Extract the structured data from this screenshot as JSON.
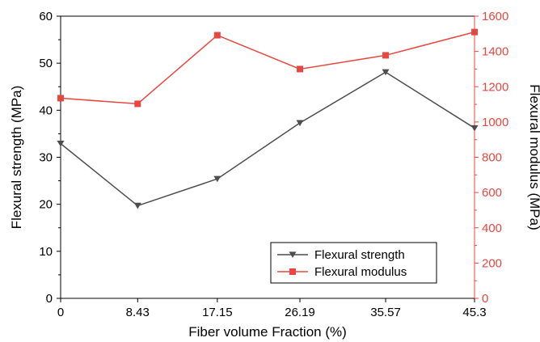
{
  "chart_data": {
    "type": "line",
    "x": [
      0,
      8.43,
      17.15,
      26.19,
      35.57,
      45.3
    ],
    "x_tick_labels": [
      "0",
      "8.43",
      "17.15",
      "26.19",
      "35.57",
      "45.3"
    ],
    "xlabel": "Fiber volume Fraction (%)",
    "ylabel_left": "Flexural strength (MPa)",
    "ylabel_right": "Flexural modulus (MPa)",
    "ylim_left": [
      0,
      60
    ],
    "ylim_right": [
      0,
      1600
    ],
    "y_left_ticks": [
      "0",
      "10",
      "20",
      "30",
      "40",
      "50",
      "60"
    ],
    "y_right_ticks": [
      "0",
      "200",
      "400",
      "600",
      "800",
      "1000",
      "1200",
      "1400",
      "1600"
    ],
    "grid": false,
    "legend_position": "bottom-right",
    "series": [
      {
        "name": "Flexural strength",
        "axis": "left",
        "marker": "triangle-down",
        "color": "#4d4d4d",
        "values": [
          32.9,
          19.7,
          25.4,
          37.3,
          48.1,
          36.2
        ]
      },
      {
        "name": "Flexural modulus",
        "axis": "right",
        "marker": "square",
        "color": "#e8473f",
        "values": [
          1135,
          1103,
          1492,
          1300,
          1378,
          1510
        ]
      }
    ]
  }
}
